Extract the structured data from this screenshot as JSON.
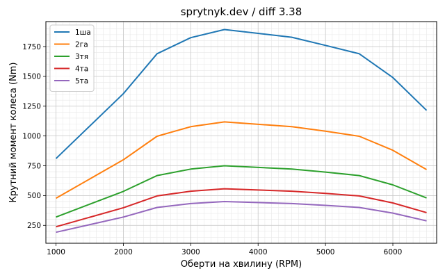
{
  "chart_data": {
    "type": "line",
    "title": "sprytnyk.dev / diff 3.38",
    "xlabel": "Оберти на хвилину (RPM)",
    "ylabel": "Крутний момент колеса (Nm)",
    "xlim": [
      850,
      6650
    ],
    "ylim": [
      100,
      1960
    ],
    "x_ticks": [
      1000,
      2000,
      3000,
      4000,
      5000,
      6000
    ],
    "y_ticks": [
      250,
      500,
      750,
      1000,
      1250,
      1500,
      1750
    ],
    "x_minor_step": 100,
    "y_minor_step": 50,
    "grid": true,
    "legend_position": "top-left",
    "x": [
      1000,
      2000,
      2500,
      3000,
      3500,
      4500,
      5000,
      5500,
      6000,
      6500
    ],
    "series": [
      {
        "name": "1ша",
        "color": "#1f77b4",
        "values": [
          810,
          1355,
          1690,
          1825,
          1893,
          1828,
          1760,
          1690,
          1490,
          1215
        ]
      },
      {
        "name": "2га",
        "color": "#ff7f0e",
        "values": [
          478,
          800,
          998,
          1078,
          1118,
          1078,
          1040,
          998,
          880,
          718
        ]
      },
      {
        "name": "3тя",
        "color": "#2ca02c",
        "values": [
          320,
          535,
          668,
          722,
          750,
          722,
          697,
          668,
          590,
          480
        ]
      },
      {
        "name": "4та",
        "color": "#d62728",
        "values": [
          238,
          398,
          497,
          537,
          557,
          537,
          518,
          497,
          438,
          357
        ]
      },
      {
        "name": "5та",
        "color": "#9467bd",
        "values": [
          192,
          320,
          400,
          433,
          450,
          433,
          418,
          400,
          353,
          288
        ]
      }
    ]
  }
}
